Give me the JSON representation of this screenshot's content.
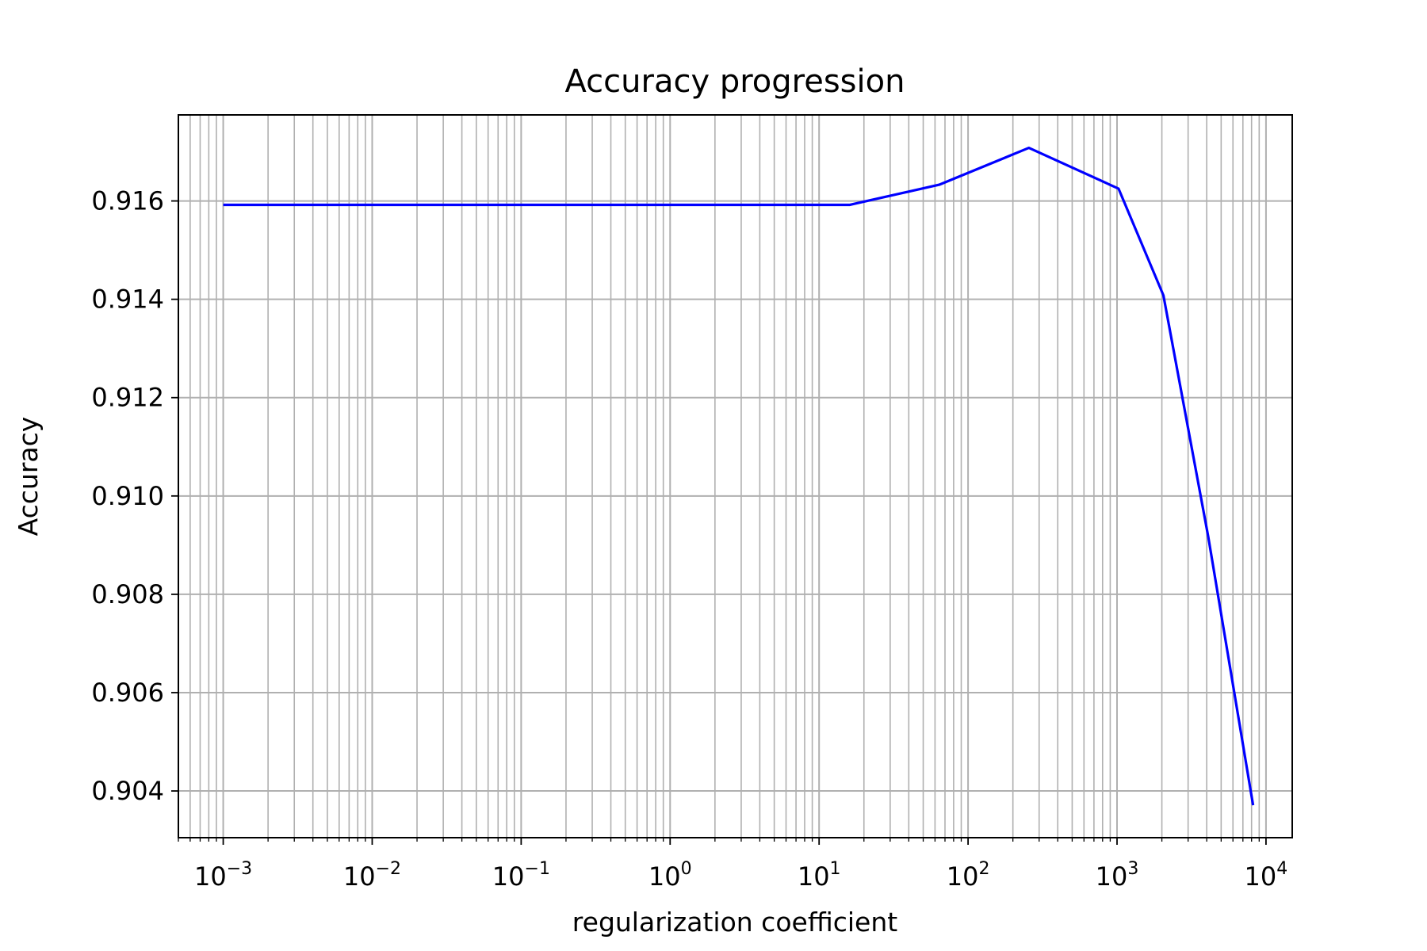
{
  "chart_data": {
    "type": "line",
    "title": "Accuracy progression",
    "xlabel": "regularization coefficient",
    "ylabel": "Accuracy",
    "xscale": "log",
    "xlim": [
      0.0005,
      15000
    ],
    "ylim": [
      0.90305,
      0.91775
    ],
    "grid": true,
    "grid_which": "both",
    "colors": {
      "line": "#0000ff",
      "grid": "#b0b0b0",
      "axes": "#000000"
    },
    "x_ticks": [
      {
        "base": "10",
        "exp": "−3",
        "value": 0.001
      },
      {
        "base": "10",
        "exp": "−2",
        "value": 0.01
      },
      {
        "base": "10",
        "exp": "−1",
        "value": 0.1
      },
      {
        "base": "10",
        "exp": "0",
        "value": 1
      },
      {
        "base": "10",
        "exp": "1",
        "value": 10
      },
      {
        "base": "10",
        "exp": "2",
        "value": 100
      },
      {
        "base": "10",
        "exp": "3",
        "value": 1000
      },
      {
        "base": "10",
        "exp": "4",
        "value": 10000
      }
    ],
    "y_ticks": [
      {
        "label": "0.904",
        "value": 0.904
      },
      {
        "label": "0.906",
        "value": 0.906
      },
      {
        "label": "0.908",
        "value": 0.908
      },
      {
        "label": "0.910",
        "value": 0.91
      },
      {
        "label": "0.912",
        "value": 0.912
      },
      {
        "label": "0.914",
        "value": 0.914
      },
      {
        "label": "0.916",
        "value": 0.916
      }
    ],
    "series": [
      {
        "x": [
          0.001,
          16,
          64,
          256,
          1024,
          2048,
          4096,
          8192
        ],
        "y": [
          0.91592,
          0.91592,
          0.91633,
          0.91708,
          0.91625,
          0.91408,
          0.90917,
          0.90371
        ]
      }
    ]
  }
}
